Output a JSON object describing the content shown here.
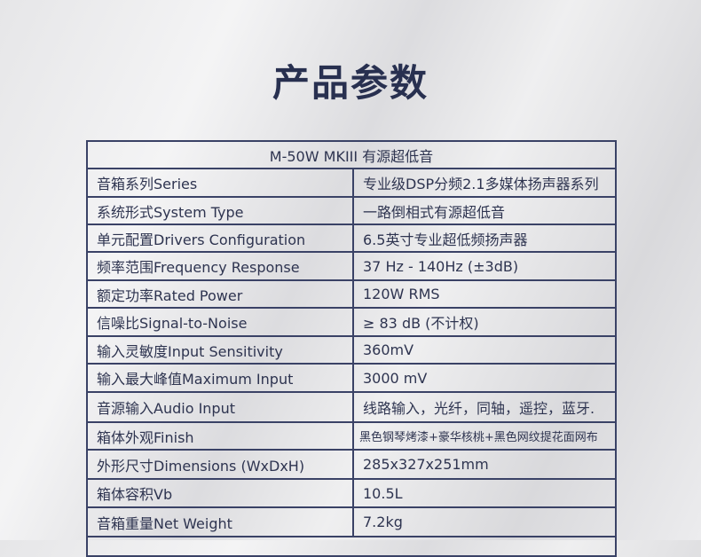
{
  "title": "产品参数",
  "table": {
    "header": "M-50W MKIII 有源超低音",
    "rows": [
      {
        "key": "音箱系列Series",
        "value": "专业级DSP分频2.1多媒体扬声器系列"
      },
      {
        "key": "系统形式System Type",
        "value": "一路倒相式有源超低音"
      },
      {
        "key": "单元配置Drivers Configuration",
        "value": "6.5英寸专业超低频扬声器"
      },
      {
        "key": "频率范围Frequency Response",
        "value": "37 Hz - 140Hz (±3dB)"
      },
      {
        "key": "额定功率Rated Power",
        "value": "120W RMS"
      },
      {
        "key": "信噪比Signal-to-Noise",
        "value": "≥ 83 dB (不计权)"
      },
      {
        "key": "输入灵敏度Input Sensitivity",
        "value": "360mV"
      },
      {
        "key": "输入最大峰值Maximum Input",
        "value": "3000 mV"
      },
      {
        "key": "音源输入Audio Input",
        "value": "线路输入，光纤，同轴，遥控，蓝牙."
      },
      {
        "key": "箱体外观Finish",
        "value": "黑色钢琴烤漆+豪华核桃+黑色网纹提花面网布"
      },
      {
        "key": "外形尺寸Dimensions (WxDxH)",
        "value": "285x327x251mm"
      },
      {
        "key": "箱体容积Vb",
        "value": "10.5L"
      },
      {
        "key": "音箱重量Net Weight",
        "value": "7.2kg"
      }
    ]
  }
}
